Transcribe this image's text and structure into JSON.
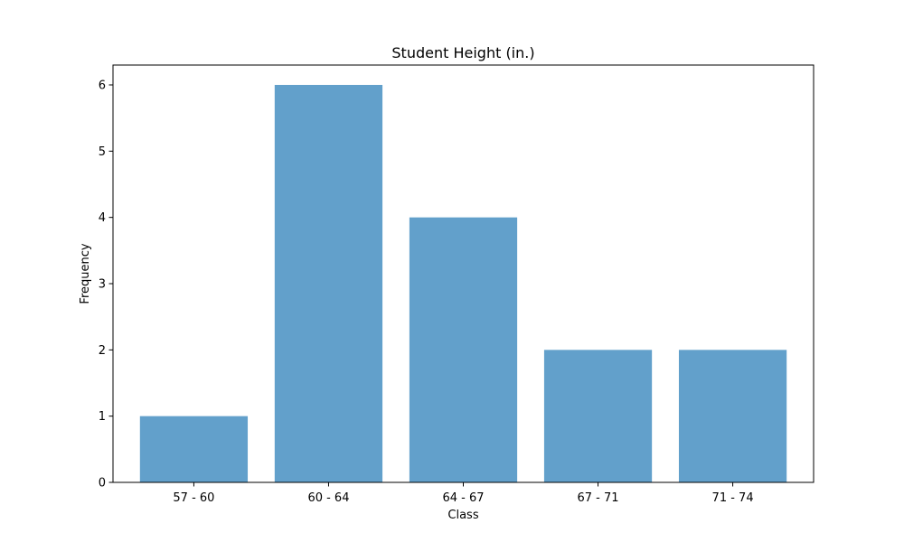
{
  "chart_data": {
    "type": "bar",
    "title": "Student Height (in.)",
    "xlabel": "Class",
    "ylabel": "Frequency",
    "categories": [
      "57 - 60",
      "60 - 64",
      "64 - 67",
      "67 - 71",
      "71 - 74"
    ],
    "values": [
      1,
      6,
      4,
      2,
      2
    ],
    "ylim": [
      0,
      6.3
    ],
    "yticks": [
      0,
      1,
      2,
      3,
      4,
      5,
      6
    ],
    "bar_color": "#62a0cb",
    "grid": false,
    "legend": "none"
  }
}
